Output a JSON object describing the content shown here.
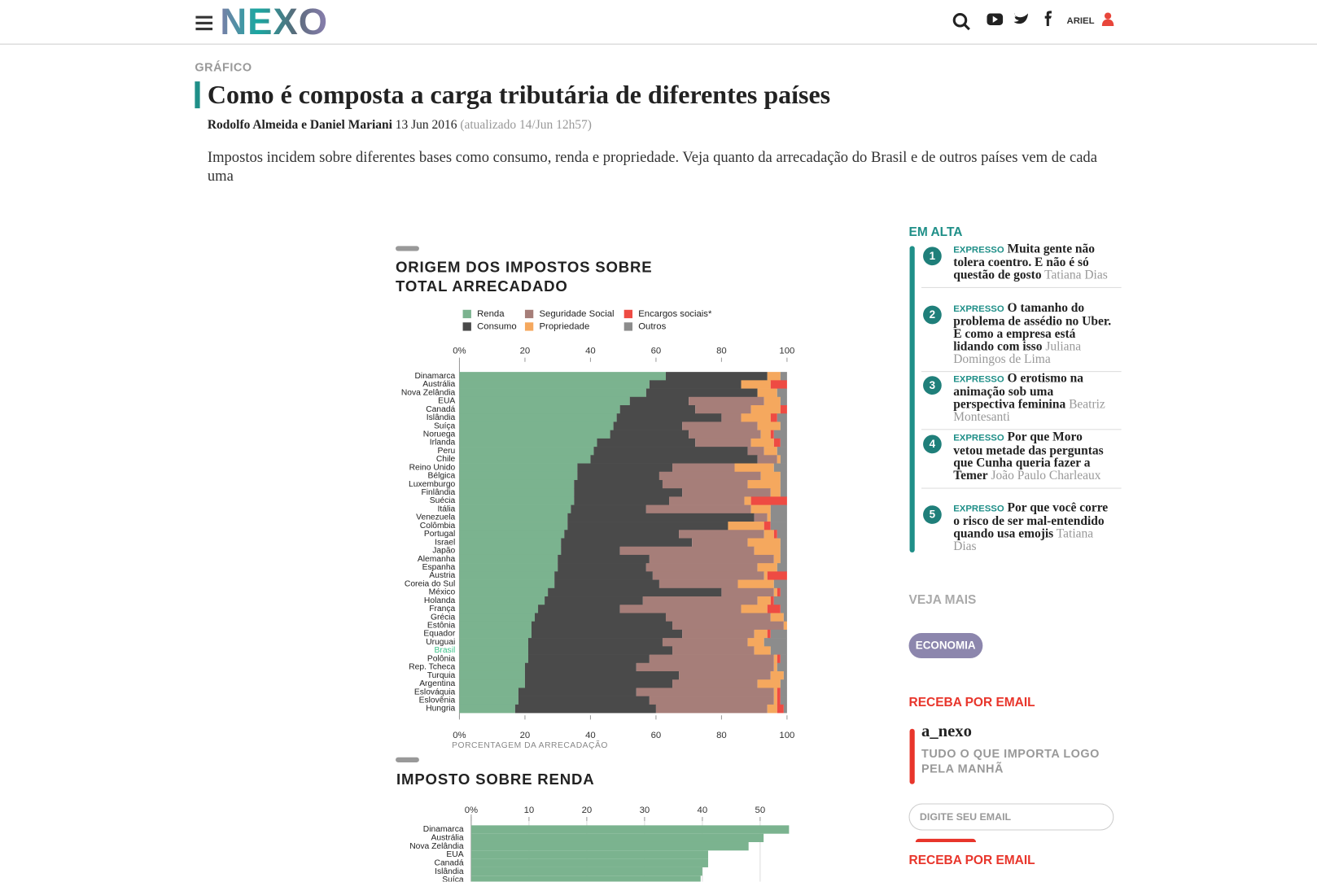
{
  "header": {
    "logo": "NEXO",
    "user": "ARIEL"
  },
  "article": {
    "section": "GRÁFICO",
    "title": "Como é composta a carga tributária de diferentes países",
    "authors": "Rodolfo Almeida e Daniel Mariani",
    "date": "13 Jun 2016",
    "updated": "(atualizado 14/Jun 12h57)",
    "lead": "Impostos incidem sobre diferentes bases como consumo, renda e propriedade. Veja quanto da arrecadação do Brasil e de outros países vem de cada uma"
  },
  "chart_data": [
    {
      "type": "bar",
      "orientation": "horizontal",
      "stacked": true,
      "title": "ORIGEM DOS IMPOSTOS SOBRE TOTAL ARRECADADO",
      "x_label": "PORCENTAGEM DA ARRECADAÇÃO",
      "categories": [
        "Dinamarca",
        "Austrália",
        "Nova Zelândia",
        "EUA",
        "Canadá",
        "Islândia",
        "Suíça",
        "Noruega",
        "Irlanda",
        "Peru",
        "Chile",
        "Reino Unido",
        "Bélgica",
        "Luxemburgo",
        "Finlândia",
        "Suécia",
        "Itália",
        "Venezuela",
        "Colômbia",
        "Portugal",
        "Israel",
        "Japão",
        "Alemanha",
        "Espanha",
        "Áustria",
        "Coreia do Sul",
        "México",
        "Holanda",
        "França",
        "Grécia",
        "Estônia",
        "Equador",
        "Uruguai",
        "Brasil",
        "Polônia",
        "Rep. Tcheca",
        "Turquia",
        "Argentina",
        "Eslováquia",
        "Eslovênia",
        "Hungria"
      ],
      "highlight": "Brasil",
      "highlight_color": "#3cc48a",
      "series": [
        {
          "name": "Renda",
          "color": "#7bb38f",
          "values": [
            63,
            58,
            57,
            52,
            49,
            48,
            47,
            46,
            42,
            41,
            40,
            36,
            36,
            35,
            35,
            35,
            34,
            33,
            33,
            32,
            31,
            31,
            30,
            30,
            29,
            29,
            27,
            26,
            24,
            23,
            22,
            22,
            21,
            21,
            21,
            20,
            20,
            20,
            18,
            18,
            17
          ]
        },
        {
          "name": "Consumo",
          "color": "#4a4a4a",
          "values": [
            31,
            28,
            34,
            18,
            23,
            32,
            21,
            24,
            30,
            47,
            51,
            29,
            25,
            27,
            33,
            29,
            23,
            57,
            49,
            35,
            40,
            18,
            28,
            27,
            30,
            32,
            53,
            30,
            25,
            40,
            43,
            46,
            41,
            44,
            37,
            34,
            47,
            45,
            36,
            40,
            43
          ]
        },
        {
          "name": "Seguridade Social",
          "color": "#a67e79",
          "values": [
            0,
            0,
            0,
            23,
            17,
            6,
            23,
            22,
            17,
            5,
            6,
            19,
            31,
            26,
            27,
            23,
            32,
            4,
            0,
            26,
            17,
            41,
            38,
            34,
            34,
            24,
            16,
            35,
            37,
            32,
            34,
            22,
            26,
            25,
            38,
            42,
            28,
            26,
            42,
            38,
            34
          ]
        },
        {
          "name": "Propriedade",
          "color": "#f5a85e",
          "values": [
            4,
            9,
            6,
            5,
            9,
            9,
            7,
            3,
            7,
            4,
            1,
            12,
            6,
            10,
            3,
            2,
            6,
            1,
            11,
            3,
            10,
            8,
            2,
            6,
            1,
            11,
            1,
            4,
            8,
            4,
            1,
            4,
            5,
            5,
            1,
            1,
            4,
            7,
            1,
            1,
            3
          ]
        },
        {
          "name": "Encargos sociais*",
          "color": "#ee4b43",
          "values": [
            0,
            5,
            0,
            0,
            2,
            2,
            0,
            1,
            2,
            0,
            0,
            0,
            0,
            0,
            0,
            11,
            0,
            0,
            2,
            1,
            0,
            0,
            0,
            0,
            6,
            0,
            1,
            1,
            4,
            0,
            0,
            1,
            0,
            0,
            1,
            0,
            0,
            0,
            1,
            1,
            2
          ]
        },
        {
          "name": "Outros",
          "color": "#8c8c8c",
          "values": [
            2,
            0,
            3,
            2,
            0,
            3,
            2,
            4,
            2,
            3,
            2,
            4,
            2,
            2,
            2,
            0,
            5,
            5,
            5,
            3,
            2,
            2,
            2,
            3,
            0,
            4,
            2,
            4,
            2,
            1,
            0,
            5,
            7,
            5,
            2,
            3,
            1,
            2,
            2,
            2,
            1
          ]
        }
      ],
      "xlim": [
        0,
        100
      ],
      "xticks": [
        {
          "value": 0,
          "label": "0%"
        },
        20,
        40,
        60,
        80,
        100
      ],
      "grid": false,
      "legend": "top"
    },
    {
      "type": "bar",
      "orientation": "horizontal",
      "title": "IMPOSTO SOBRE RENDA",
      "categories": [
        "Dinamarca",
        "Austrália",
        "Nova Zelândia",
        "EUA",
        "Canadá",
        "Islândia",
        "Suíça"
      ],
      "values": [
        55,
        50.6,
        48,
        41,
        41,
        40,
        39.7
      ],
      "color": "#7bb38f",
      "xlim": [
        0,
        55
      ],
      "xticks": [
        {
          "value": 0,
          "label": "0%"
        },
        10,
        20,
        30,
        40,
        50
      ],
      "grid": true
    }
  ],
  "sidebar": {
    "trending_title": "EM ALTA",
    "items": [
      {
        "rank": "1",
        "tag": "EXPRESSO",
        "title": "Muita gente não tolera coentro. E não é só questão de gosto",
        "author": "Tatiana Dias"
      },
      {
        "rank": "2",
        "tag": "EXPRESSO",
        "title": "O tamanho do problema de assédio no Uber. E como a empresa está lidando com isso",
        "author": "Juliana Domingos de Lima"
      },
      {
        "rank": "3",
        "tag": "EXPRESSO",
        "title": "O erotismo na animação sob uma perspectiva feminina",
        "author": "Beatriz Montesanti"
      },
      {
        "rank": "4",
        "tag": "EXPRESSO",
        "title": "Por que Moro vetou metade das perguntas que Cunha queria fazer a Temer",
        "author": "João Paulo Charleaux"
      },
      {
        "rank": "5",
        "tag": "EXPRESSO",
        "title": "Por que você corre o risco de ser mal-entendido quando usa emojis",
        "author": "Tatiana Dias"
      }
    ],
    "see_more": "VEJA MAIS",
    "tag": "ECONOMIA",
    "newsletter_title": "RECEBA POR EMAIL",
    "newsletter_name": "a_nexo",
    "newsletter_desc": "TUDO O QUE IMPORTA LOGO PELA MANHÃ",
    "email_placeholder": "DIGITE SEU EMAIL",
    "newsletter_title_2": "RECEBA POR EMAIL"
  }
}
